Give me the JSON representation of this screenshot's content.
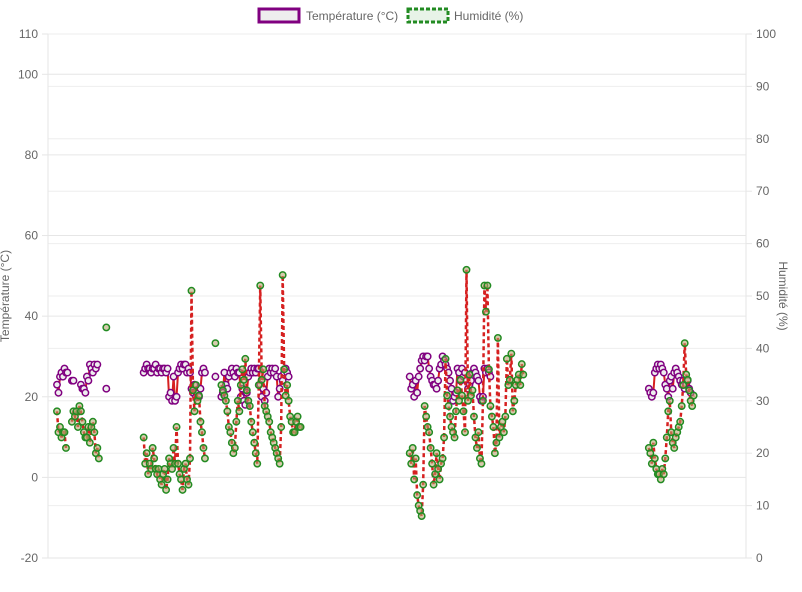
{
  "chart_data": {
    "type": "line",
    "title": "",
    "legend_position": "top",
    "grid": true,
    "y_left": {
      "label": "Température (°C)",
      "ylim": [
        -20,
        110
      ],
      "ticks": [
        -20,
        0,
        20,
        40,
        60,
        80,
        100,
        110
      ]
    },
    "y_right": {
      "label": "Humidité (%)",
      "ylim": [
        0,
        100
      ],
      "ticks": [
        0,
        10,
        20,
        30,
        40,
        50,
        60,
        70,
        80,
        90,
        100
      ]
    },
    "x": {
      "ticks_shown": false,
      "n_points": 460
    },
    "series": [
      {
        "name": "Température (°C)",
        "axis": "left",
        "color": "#800080",
        "fill": "#e6e6e6",
        "style": "solid",
        "segments": [
          {
            "x0": 2,
            "values": [
              23,
              21,
              25,
              26,
              25,
              27,
              26,
              26
            ]
          },
          {
            "x0": 12,
            "values": [
              24,
              24
            ]
          },
          {
            "x0": 18,
            "values": [
              23,
              22,
              22,
              21,
              25,
              24,
              28,
              27,
              26,
              28,
              27,
              28
            ]
          },
          {
            "x0": 35,
            "values": [
              22
            ]
          },
          {
            "x0": 60,
            "values": [
              26,
              27,
              28,
              27,
              27,
              26,
              27,
              27,
              28,
              26,
              27,
              27,
              26,
              27,
              27,
              26,
              27,
              20,
              21,
              19,
              25,
              19,
              20,
              26,
              27,
              28,
              27,
              28,
              28,
              26,
              27,
              26,
              22,
              21,
              23,
              20,
              21,
              20,
              22,
              26,
              27,
              26
            ]
          },
          {
            "x0": 108,
            "values": [
              25
            ]
          },
          {
            "x0": 112,
            "values": [
              20,
              21,
              26,
              23,
              22,
              25,
              26,
              27,
              26,
              25,
              27,
              26,
              26,
              20,
              22,
              19,
              18,
              21,
              25,
              26,
              27,
              26,
              27,
              26,
              27,
              27,
              23,
              20,
              22,
              19,
              21,
              25,
              27,
              26,
              27,
              26,
              27,
              25,
              20,
              22,
              25,
              24,
              26,
              27,
              26,
              25
            ]
          },
          {
            "x0": 238,
            "values": [
              25,
              22,
              23,
              20,
              24,
              21,
              25,
              27,
              29,
              30,
              29,
              30,
              30,
              27,
              25,
              24,
              23,
              23,
              22,
              24,
              27,
              28,
              30,
              29,
              28,
              27,
              26,
              24,
              22,
              19,
              20,
              21,
              27,
              26,
              24,
              27,
              25,
              26,
              24,
              22,
              23,
              24,
              26,
              27,
              26,
              25,
              24,
              20,
              19,
              20,
              27,
              26,
              27,
              26,
              25
            ]
          },
          {
            "x0": 398,
            "values": [
              22,
              21,
              20,
              21,
              26,
              27,
              28,
              27,
              28,
              27,
              26,
              23,
              22,
              20,
              24,
              25,
              22,
              26,
              27,
              26,
              25,
              24,
              23,
              24,
              22,
              23,
              24,
              22,
              21
            ]
          }
        ]
      },
      {
        "name": "Humidité (%)",
        "axis": "right",
        "color": "#228b22",
        "line_color": "#d62020",
        "style": "dashed",
        "segments": [
          {
            "x0": 2,
            "values": [
              28,
              24,
              25,
              23,
              24,
              24,
              21
            ]
          },
          {
            "x0": 12,
            "values": [
              26,
              28,
              27,
              28,
              25,
              29,
              28,
              26,
              24,
              23,
              23,
              25,
              22,
              25,
              26,
              24,
              20,
              21,
              19
            ]
          },
          {
            "x0": 35,
            "values": [
              44
            ]
          },
          {
            "x0": 60,
            "values": [
              23,
              18,
              20,
              16,
              18,
              17,
              21,
              19,
              17,
              16,
              17,
              15,
              14,
              16,
              17,
              13,
              15,
              19,
              18,
              17,
              21,
              18,
              25,
              18,
              16,
              15,
              13,
              17,
              18,
              15,
              14,
              19,
              51,
              32,
              28,
              33,
              30,
              31,
              26,
              24,
              21,
              19
            ]
          },
          {
            "x0": 108,
            "values": [
              41
            ]
          },
          {
            "x0": 112,
            "values": [
              33,
              32,
              31,
              30,
              28,
              25,
              24,
              22,
              20,
              21,
              26,
              30,
              28,
              33,
              36,
              34,
              38,
              32,
              30,
              29,
              26,
              24,
              22,
              20,
              18,
              33,
              52,
              34,
              36,
              29,
              28,
              27,
              26,
              24,
              23,
              22,
              21,
              20,
              19,
              18,
              25,
              54,
              36,
              31,
              33,
              30,
              27,
              26,
              24,
              24,
              26,
              27,
              25,
              25
            ]
          },
          {
            "x0": 238,
            "values": [
              20,
              18,
              21,
              15,
              19,
              12,
              10,
              9,
              8,
              14,
              29,
              27,
              25,
              24,
              21,
              18,
              14,
              16,
              20,
              17,
              15,
              18,
              19,
              23,
              38,
              31,
              29,
              27,
              25,
              24,
              23,
              28,
              32,
              30,
              34,
              31,
              28,
              24,
              55,
              30,
              35,
              31,
              32,
              27,
              23,
              21,
              24,
              19,
              18,
              30,
              52,
              47,
              52,
              36,
              29,
              27,
              25,
              20,
              22,
              42,
              23,
              25,
              26,
              24,
              27,
              38,
              33,
              34,
              39,
              28,
              30,
              33,
              34,
              35,
              33,
              37,
              35
            ]
          },
          {
            "x0": 398,
            "values": [
              21,
              20,
              18,
              22,
              19,
              17,
              16,
              16,
              15,
              17,
              16,
              19,
              23,
              28,
              30,
              24,
              22,
              21,
              23,
              24,
              25,
              26,
              29,
              33,
              41,
              35,
              34,
              32,
              30,
              29,
              31
            ]
          }
        ]
      }
    ]
  },
  "colors": {
    "temperature": "#800080",
    "humidity_point": "#228b22",
    "humidity_line": "#d62020",
    "grid": "#e6e6e6",
    "text": "#666666"
  }
}
